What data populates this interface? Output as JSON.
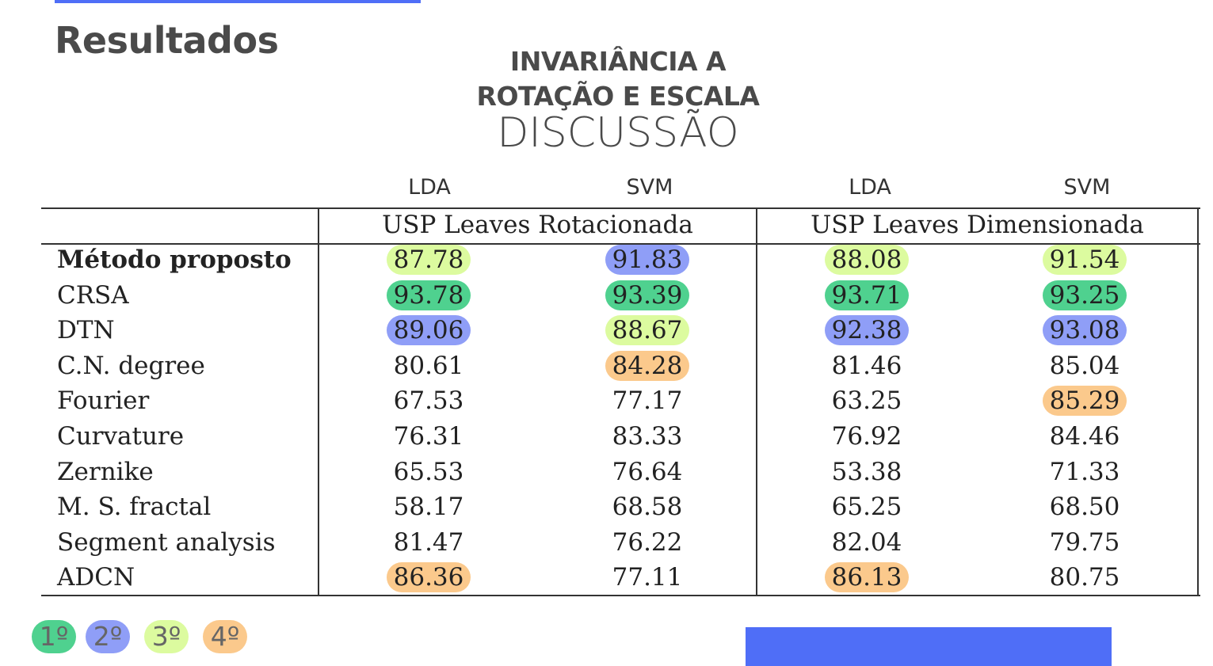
{
  "section_title": "Resultados",
  "headline_line1": "INVARIÂNCIA A",
  "headline_line2": "ROTAÇÃO E ESCALA",
  "subhead": "DISCUSSÃO",
  "classifier_labels": [
    "LDA",
    "SVM",
    "LDA",
    "SVM"
  ],
  "table": {
    "groups": [
      "USP Leaves Rotacionada",
      "USP Leaves Dimensionada"
    ],
    "rows": [
      {
        "method": "Método proposto",
        "bold": true,
        "values": [
          "87.78",
          "91.83",
          "88.08",
          "91.54"
        ],
        "ranks": [
          3,
          2,
          3,
          3
        ]
      },
      {
        "method": "CRSA",
        "values": [
          "93.78",
          "93.39",
          "93.71",
          "93.25"
        ],
        "ranks": [
          1,
          1,
          1,
          1
        ]
      },
      {
        "method": "DTN",
        "values": [
          "89.06",
          "88.67",
          "92.38",
          "93.08"
        ],
        "ranks": [
          2,
          3,
          2,
          2
        ]
      },
      {
        "method": "C.N. degree",
        "values": [
          "80.61",
          "84.28",
          "81.46",
          "85.04"
        ],
        "ranks": [
          0,
          4,
          0,
          0
        ]
      },
      {
        "method": "Fourier",
        "values": [
          "67.53",
          "77.17",
          "63.25",
          "85.29"
        ],
        "ranks": [
          0,
          0,
          0,
          4
        ]
      },
      {
        "method": "Curvature",
        "values": [
          "76.31",
          "83.33",
          "76.92",
          "84.46"
        ],
        "ranks": [
          0,
          0,
          0,
          0
        ]
      },
      {
        "method": "Zernike",
        "values": [
          "65.53",
          "76.64",
          "53.38",
          "71.33"
        ],
        "ranks": [
          0,
          0,
          0,
          0
        ]
      },
      {
        "method": "M. S. fractal",
        "values": [
          "58.17",
          "68.58",
          "65.25",
          "68.50"
        ],
        "ranks": [
          0,
          0,
          0,
          0
        ]
      },
      {
        "method": "Segment analysis",
        "values": [
          "81.47",
          "76.22",
          "82.04",
          "79.75"
        ],
        "ranks": [
          0,
          0,
          0,
          0
        ]
      },
      {
        "method": "ADCN",
        "values": [
          "86.36",
          "77.11",
          "86.13",
          "80.75"
        ],
        "ranks": [
          4,
          0,
          4,
          0
        ]
      }
    ]
  },
  "legend": [
    {
      "label": "1º",
      "rank": 1
    },
    {
      "label": "2º",
      "rank": 2
    },
    {
      "label": "3º",
      "rank": 3
    },
    {
      "label": "4º",
      "rank": 4
    }
  ],
  "colors": {
    "accent_bar": "#4f6ef7",
    "rank_1": "#4fd18f",
    "rank_2": "#8f9ef7",
    "rank_3": "#dcfb9f",
    "rank_4": "#fbc98c"
  }
}
